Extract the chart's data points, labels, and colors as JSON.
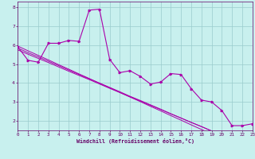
{
  "xlabel": "Windchill (Refroidissement éolien,°C)",
  "bg_color": "#c8f0ee",
  "line_color": "#aa00aa",
  "grid_color": "#99cccc",
  "axis_color": "#660066",
  "text_color": "#660066",
  "x_data": [
    0,
    1,
    2,
    3,
    4,
    5,
    6,
    7,
    8,
    9,
    10,
    11,
    12,
    13,
    14,
    15,
    16,
    17,
    18,
    19,
    20,
    21,
    22,
    23
  ],
  "y_main": [
    5.9,
    5.2,
    5.1,
    6.1,
    6.1,
    6.25,
    6.2,
    7.85,
    7.9,
    5.25,
    4.55,
    4.65,
    4.35,
    3.95,
    4.05,
    4.5,
    4.45,
    3.7,
    3.1,
    3.0,
    2.55,
    1.75,
    1.75,
    1.85
  ],
  "y_reg1": [
    5.85,
    5.6,
    5.38,
    5.15,
    4.92,
    4.68,
    4.45,
    4.22,
    4.0,
    3.77,
    3.54,
    3.3,
    3.08,
    2.85,
    2.62,
    2.38,
    2.15,
    1.92,
    1.7,
    1.47,
    1.24,
    1.0,
    0.78,
    0.55
  ],
  "y_reg2": [
    5.75,
    5.52,
    5.3,
    5.08,
    4.85,
    4.62,
    4.4,
    4.18,
    3.95,
    3.72,
    3.5,
    3.27,
    3.05,
    2.82,
    2.6,
    2.37,
    2.15,
    1.92,
    1.7,
    1.47,
    1.25,
    1.02,
    0.8,
    0.57
  ],
  "y_reg3": [
    5.95,
    5.7,
    5.46,
    5.22,
    4.97,
    4.73,
    4.48,
    4.24,
    3.99,
    3.75,
    3.5,
    3.26,
    3.02,
    2.77,
    2.53,
    2.28,
    2.04,
    1.79,
    1.55,
    1.3,
    1.06,
    0.81,
    0.57,
    0.32
  ],
  "xlim": [
    0,
    23
  ],
  "ylim": [
    1.5,
    8.3
  ],
  "yticks": [
    2,
    3,
    4,
    5,
    6,
    7,
    8
  ],
  "xticks": [
    0,
    1,
    2,
    3,
    4,
    5,
    6,
    7,
    8,
    9,
    10,
    11,
    12,
    13,
    14,
    15,
    16,
    17,
    18,
    19,
    20,
    21,
    22,
    23
  ]
}
